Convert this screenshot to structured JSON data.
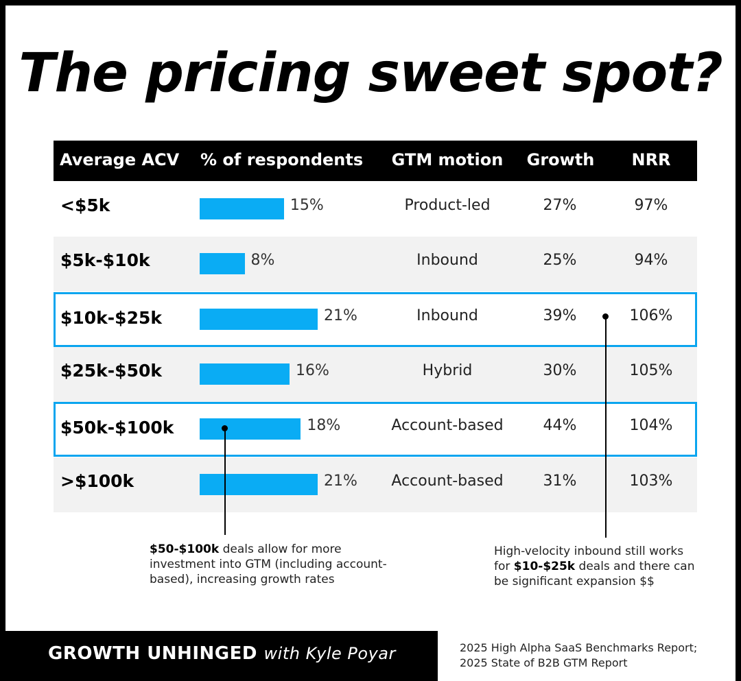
{
  "title": "The pricing sweet spot?",
  "chart_data": {
    "type": "table",
    "columns": [
      "Average ACV",
      "% of respondents",
      "GTM motion",
      "Growth",
      "NRR"
    ],
    "rows": [
      {
        "acv": "<$5k",
        "pct": 15,
        "pct_label": "15%",
        "gtm": "Product-led",
        "growth": "27%",
        "nrr": "97%",
        "highlight": false
      },
      {
        "acv": "$5k-$10k",
        "pct": 8,
        "pct_label": "8%",
        "gtm": "Inbound",
        "growth": "25%",
        "nrr": "94%",
        "highlight": false
      },
      {
        "acv": "$10k-$25k",
        "pct": 21,
        "pct_label": "21%",
        "gtm": "Inbound",
        "growth": "39%",
        "nrr": "106%",
        "highlight": true
      },
      {
        "acv": "$25k-$50k",
        "pct": 16,
        "pct_label": "16%",
        "gtm": "Hybrid",
        "growth": "30%",
        "nrr": "105%",
        "highlight": false
      },
      {
        "acv": "$50k-$100k",
        "pct": 18,
        "pct_label": "18%",
        "gtm": "Account-based",
        "growth": "44%",
        "nrr": "104%",
        "highlight": true
      },
      {
        "acv": ">$100k",
        "pct": 21,
        "pct_label": "21%",
        "gtm": "Account-based",
        "growth": "31%",
        "nrr": "103%",
        "highlight": false
      }
    ],
    "bar_max_pct": 21,
    "bar_color": "#0aacf4",
    "highlight_color": "#0aa5ef"
  },
  "notes": {
    "left": {
      "bold": "$50-$100k",
      "text": " deals allow for more investment into GTM (including account-based), increasing growth rates"
    },
    "right": {
      "pre": "High-velocity inbound still works for ",
      "bold": "$10-$25k",
      "post": " deals and there can be significant expansion $$"
    }
  },
  "footer": {
    "brand": "GROWTH UNHINGED",
    "with": "with Kyle Poyar",
    "source_line1": "2025 High Alpha SaaS Benchmarks Report;",
    "source_line2": "2025 State of B2B GTM Report"
  }
}
